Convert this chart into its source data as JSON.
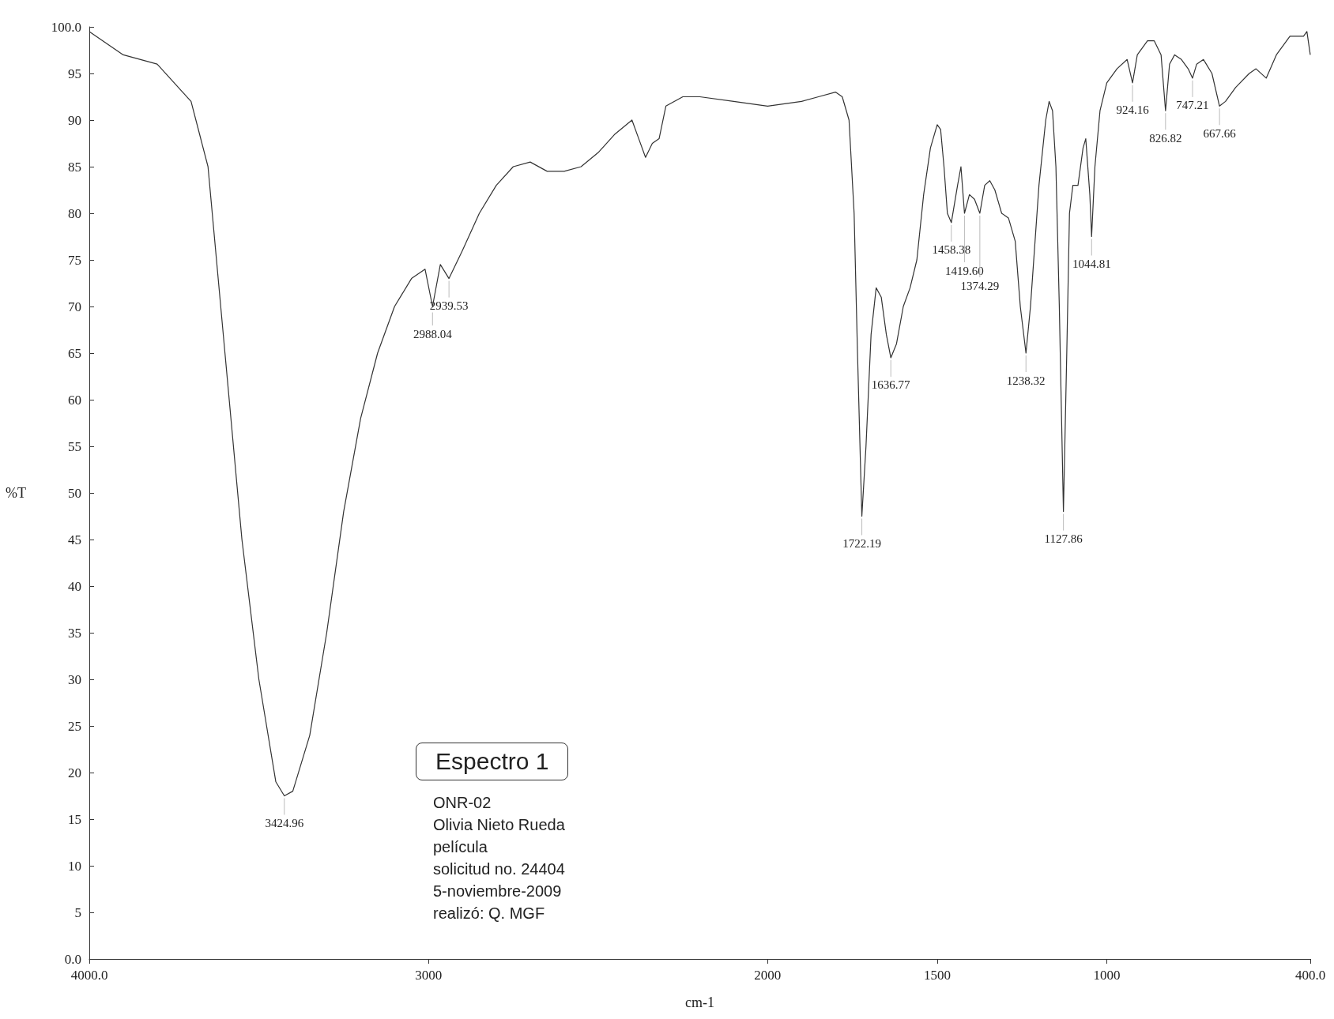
{
  "chart_data": {
    "type": "line",
    "title": "Espectro 1",
    "xlabel": "cm-1",
    "ylabel": "%T",
    "color": "#333333",
    "xlim": [
      4000,
      400
    ],
    "ylim": [
      0,
      100
    ],
    "xticks": [
      {
        "value": 4000,
        "label": "4000.0"
      },
      3000,
      2000,
      1500,
      1000,
      {
        "value": 400,
        "label": "400.0"
      }
    ],
    "yticks": [
      {
        "value": 0,
        "label": "0.0"
      },
      5,
      10,
      15,
      20,
      25,
      30,
      35,
      40,
      45,
      50,
      55,
      60,
      65,
      70,
      75,
      80,
      85,
      90,
      95,
      {
        "value": 100,
        "label": "100.0"
      }
    ],
    "grid": false,
    "marker": "none",
    "line_style": "solid",
    "x": [
      4000,
      3900,
      3800,
      3700,
      3650,
      3600,
      3550,
      3500,
      3450,
      3424.96,
      3400,
      3350,
      3300,
      3250,
      3200,
      3150,
      3100,
      3050,
      3010,
      2988.04,
      2965,
      2939.53,
      2900,
      2850,
      2800,
      2750,
      2700,
      2650,
      2600,
      2550,
      2500,
      2450,
      2400,
      2380,
      2360,
      2340,
      2320,
      2300,
      2250,
      2200,
      2100,
      2000,
      1900,
      1850,
      1800,
      1780,
      1760,
      1745,
      1735,
      1722.19,
      1710,
      1695,
      1680,
      1665,
      1650,
      1636.77,
      1620,
      1600,
      1580,
      1560,
      1540,
      1520,
      1500,
      1490,
      1480,
      1470,
      1458.38,
      1440,
      1430,
      1419.6,
      1405,
      1390,
      1374.29,
      1360,
      1345,
      1330,
      1310,
      1290,
      1270,
      1255,
      1238.32,
      1225,
      1200,
      1180,
      1170,
      1160,
      1150,
      1140,
      1127.86,
      1118,
      1110,
      1100,
      1085,
      1070,
      1062,
      1050,
      1044.81,
      1035,
      1020,
      1000,
      970,
      940,
      924.16,
      910,
      880,
      860,
      840,
      826.82,
      815,
      800,
      780,
      760,
      747.21,
      735,
      715,
      690,
      667.66,
      650,
      620,
      580,
      560,
      530,
      500,
      460,
      420,
      410,
      400
    ],
    "values": [
      99.5,
      97,
      96,
      92,
      85,
      65,
      45,
      30,
      19,
      17.5,
      18,
      24,
      35,
      48,
      58,
      65,
      70,
      73,
      74,
      70,
      74.5,
      73,
      76,
      80,
      83,
      85,
      85.5,
      84.5,
      84.5,
      85,
      86.5,
      88.5,
      90,
      88,
      86,
      87.5,
      88,
      91.5,
      92.5,
      92.5,
      92,
      91.5,
      92,
      92.5,
      93,
      92.5,
      90,
      80,
      65,
      47.5,
      55,
      67,
      72,
      71,
      67,
      64.5,
      66,
      70,
      72,
      75,
      82,
      87,
      89.5,
      89,
      85,
      80,
      79,
      83,
      85,
      80,
      82,
      81.5,
      80,
      83,
      83.5,
      82.5,
      80,
      79.5,
      77,
      70,
      65,
      70,
      83,
      90,
      92,
      91,
      85,
      70,
      48,
      65,
      80,
      83,
      83,
      87,
      88,
      82,
      77.5,
      85,
      91,
      94,
      95.5,
      96.5,
      94,
      97,
      98.5,
      98.5,
      97,
      91,
      96,
      97,
      96.5,
      95.5,
      94.5,
      96,
      96.5,
      95,
      91.5,
      92,
      93.5,
      95,
      95.5,
      94.5,
      97,
      99,
      99,
      99.5,
      97
    ],
    "annotations": [
      {
        "text": "3424.96",
        "x": 3424.96,
        "y": 17.5
      },
      {
        "text": "2988.04",
        "x": 2988.04,
        "y": 70
      },
      {
        "text": "2939.53",
        "x": 2939.53,
        "y": 73
      },
      {
        "text": "1722.19",
        "x": 1722.19,
        "y": 47.5
      },
      {
        "text": "1636.77",
        "x": 1636.77,
        "y": 64.5
      },
      {
        "text": "1458.38",
        "x": 1458.38,
        "y": 79
      },
      {
        "text": "1419.60",
        "x": 1419.6,
        "y": 80
      },
      {
        "text": "1374.29",
        "x": 1374.29,
        "y": 80
      },
      {
        "text": "1238.32",
        "x": 1238.32,
        "y": 65
      },
      {
        "text": "1127.86",
        "x": 1127.86,
        "y": 48
      },
      {
        "text": "1044.81",
        "x": 1044.81,
        "y": 77.5
      },
      {
        "text": "924.16",
        "x": 924.16,
        "y": 94
      },
      {
        "text": "826.82",
        "x": 826.82,
        "y": 91
      },
      {
        "text": "747.21",
        "x": 747.21,
        "y": 94.5
      },
      {
        "text": "667.66",
        "x": 667.66,
        "y": 91.5
      },
      "ONR-02",
      "Olivia Nieto Rueda",
      "película",
      "solicitud no. 24404",
      "5-noviembre-2009",
      "realizó: Q. MGF"
    ]
  }
}
